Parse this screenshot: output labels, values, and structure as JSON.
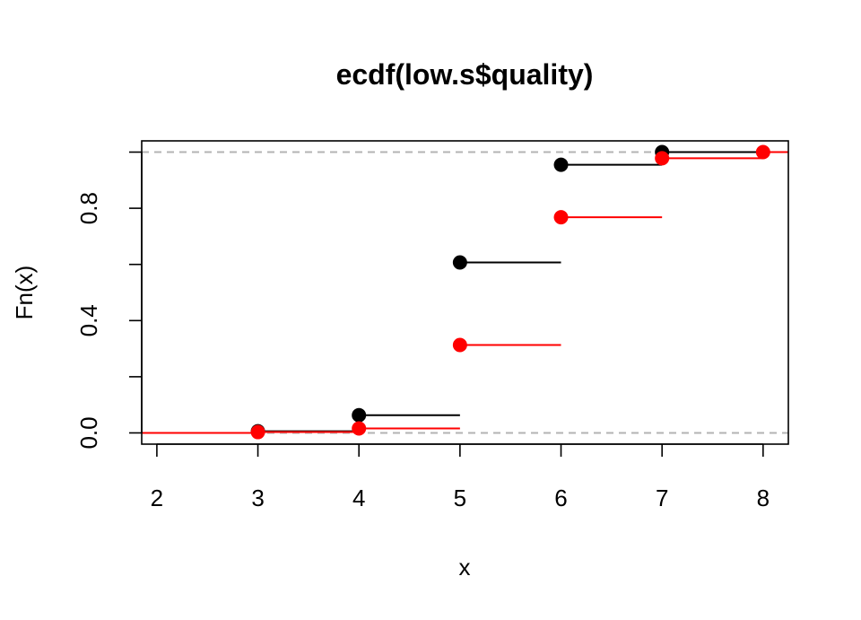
{
  "chart_data": {
    "type": "step",
    "title": "ecdf(low.s$quality)",
    "xlabel": "x",
    "ylabel": "Fn(x)",
    "xlim": [
      1.85,
      8.25
    ],
    "ylim": [
      -0.04,
      1.04
    ],
    "x_ticks": [
      "2",
      "3",
      "4",
      "5",
      "6",
      "7",
      "8"
    ],
    "y_ticks": [
      0.0,
      0.2,
      0.4,
      0.6,
      0.8,
      1.0
    ],
    "y_tick_labels": [
      "0.0",
      "",
      "0.4",
      "",
      "0.8",
      ""
    ],
    "reference_lines": [
      0.0,
      1.0
    ],
    "series": [
      {
        "color": "#000000",
        "points": [
          {
            "x": 3,
            "y": 0.006
          },
          {
            "x": 4,
            "y": 0.063
          },
          {
            "x": 5,
            "y": 0.607
          },
          {
            "x": 6,
            "y": 0.955
          },
          {
            "x": 7,
            "y": 1.0
          }
        ]
      },
      {
        "color": "#ff0000",
        "points": [
          {
            "x": 3,
            "y": 0.003
          },
          {
            "x": 4,
            "y": 0.016
          },
          {
            "x": 5,
            "y": 0.313
          },
          {
            "x": 6,
            "y": 0.768
          },
          {
            "x": 7,
            "y": 0.978
          },
          {
            "x": 8,
            "y": 1.0
          }
        ]
      }
    ]
  }
}
